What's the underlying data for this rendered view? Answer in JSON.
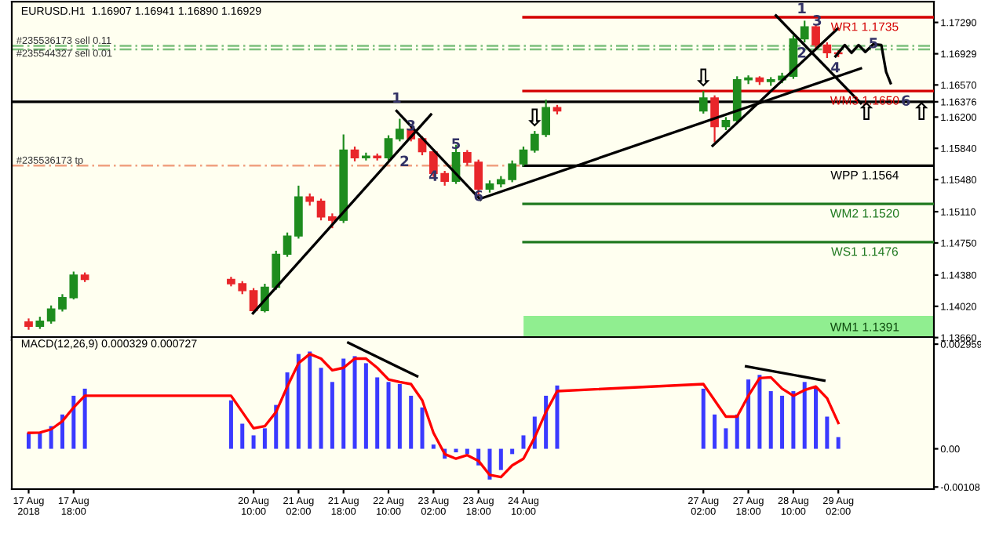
{
  "chart_data": [
    {
      "type": "candlestick",
      "title": "EURUSD.H1  1.16907 1.16941 1.16890 1.16929",
      "x": [
        "2018-08-17T02:00",
        "2018-08-17T06:00",
        "2018-08-17T10:00",
        "2018-08-17T14:00",
        "2018-08-17T18:00",
        "2018-08-17T22:00",
        "2018-08-20T02:00",
        "2018-08-20T06:00",
        "2018-08-20T10:00",
        "2018-08-20T14:00",
        "2018-08-20T18:00",
        "2018-08-20T22:00",
        "2018-08-21T02:00",
        "2018-08-21T06:00",
        "2018-08-21T10:00",
        "2018-08-21T14:00",
        "2018-08-21T18:00",
        "2018-08-21T22:00",
        "2018-08-22T02:00",
        "2018-08-22T06:00",
        "2018-08-22T10:00",
        "2018-08-22T14:00",
        "2018-08-22T18:00",
        "2018-08-22T22:00",
        "2018-08-23T02:00",
        "2018-08-23T06:00",
        "2018-08-23T10:00",
        "2018-08-23T14:00",
        "2018-08-23T18:00",
        "2018-08-23T22:00",
        "2018-08-24T02:00",
        "2018-08-24T06:00",
        "2018-08-24T10:00",
        "2018-08-24T14:00",
        "2018-08-24T18:00",
        "2018-08-24T22:00",
        "2018-08-27T02:00",
        "2018-08-27T06:00",
        "2018-08-27T10:00",
        "2018-08-27T14:00",
        "2018-08-27T18:00",
        "2018-08-27T22:00",
        "2018-08-28T02:00",
        "2018-08-28T06:00",
        "2018-08-28T10:00",
        "2018-08-28T14:00",
        "2018-08-28T18:00",
        "2018-08-28T22:00",
        "2018-08-29T02:00"
      ],
      "ohlc": [
        [
          1.1384,
          1.1388,
          1.1375,
          1.1379
        ],
        [
          1.1379,
          1.139,
          1.1376,
          1.1385
        ],
        [
          1.1385,
          1.1403,
          1.1382,
          1.1399
        ],
        [
          1.1399,
          1.1416,
          1.1396,
          1.1412
        ],
        [
          1.1412,
          1.1442,
          1.141,
          1.1438
        ],
        [
          1.1438,
          1.1441,
          1.143,
          1.1433
        ],
        [
          1.1433,
          1.1436,
          1.1425,
          1.1428
        ],
        [
          1.1428,
          1.1431,
          1.1416,
          1.142
        ],
        [
          1.142,
          1.1423,
          1.1394,
          1.1397
        ],
        [
          1.1397,
          1.1428,
          1.1395,
          1.1424
        ],
        [
          1.1424,
          1.1466,
          1.1421,
          1.1462
        ],
        [
          1.1462,
          1.1487,
          1.1459,
          1.1483
        ],
        [
          1.1483,
          1.1541,
          1.148,
          1.1528
        ],
        [
          1.1528,
          1.1532,
          1.1518,
          1.1523
        ],
        [
          1.1523,
          1.1526,
          1.1501,
          1.1505
        ],
        [
          1.1505,
          1.1509,
          1.1492,
          1.1501
        ],
        [
          1.1501,
          1.16,
          1.1498,
          1.1582
        ],
        [
          1.1582,
          1.1586,
          1.1569,
          1.1573
        ],
        [
          1.1573,
          1.1579,
          1.157,
          1.1575
        ],
        [
          1.1575,
          1.1578,
          1.157,
          1.1573
        ],
        [
          1.1573,
          1.1599,
          1.157,
          1.1595
        ],
        [
          1.1595,
          1.1618,
          1.1592,
          1.1606
        ],
        [
          1.1606,
          1.1609,
          1.1592,
          1.1595
        ],
        [
          1.1595,
          1.1598,
          1.1576,
          1.158
        ],
        [
          1.158,
          1.1583,
          1.1551,
          1.1555
        ],
        [
          1.1555,
          1.1558,
          1.1541,
          1.1546
        ],
        [
          1.1546,
          1.1588,
          1.1543,
          1.1579
        ],
        [
          1.1579,
          1.1582,
          1.1564,
          1.1568
        ],
        [
          1.1568,
          1.1571,
          1.1528,
          1.1537
        ],
        [
          1.1537,
          1.1547,
          1.1533,
          1.1543
        ],
        [
          1.1543,
          1.1552,
          1.1539,
          1.1548
        ],
        [
          1.1548,
          1.157,
          1.1545,
          1.1566
        ],
        [
          1.1566,
          1.1586,
          1.1563,
          1.1582
        ],
        [
          1.1582,
          1.1604,
          1.1579,
          1.16
        ],
        [
          1.16,
          1.164,
          1.1597,
          1.1631
        ],
        [
          1.1631,
          1.1634,
          1.1623,
          1.1627
        ],
        [
          1.1627,
          1.165,
          1.1624,
          1.1642
        ],
        [
          1.1642,
          1.1645,
          1.1591,
          1.1609
        ],
        [
          1.1609,
          1.162,
          1.1605,
          1.1616
        ],
        [
          1.1616,
          1.1667,
          1.1613,
          1.1663
        ],
        [
          1.1663,
          1.1668,
          1.1658,
          1.1665
        ],
        [
          1.1665,
          1.1667,
          1.1657,
          1.1661
        ],
        [
          1.1661,
          1.1666,
          1.1656,
          1.1663
        ],
        [
          1.1663,
          1.1671,
          1.1659,
          1.1667
        ],
        [
          1.1667,
          1.1714,
          1.1664,
          1.171
        ],
        [
          1.171,
          1.1731,
          1.1706,
          1.1724
        ],
        [
          1.1724,
          1.1727,
          1.1699,
          1.1703
        ],
        [
          1.1703,
          1.1706,
          1.1688,
          1.1694
        ],
        [
          1.1694,
          1.1697,
          1.1689,
          1.1693
        ]
      ],
      "colors": [
        "#e8262a",
        "#1e8c1e",
        "#1e8c1e",
        "#1e8c1e",
        "#1e8c1e",
        "#e8262a",
        "#e8262a",
        "#e8262a",
        "#e8262a",
        "#1e8c1e",
        "#1e8c1e",
        "#1e8c1e",
        "#1e8c1e",
        "#e8262a",
        "#e8262a",
        "#e8262a",
        "#1e8c1e",
        "#e8262a",
        "#1e8c1e",
        "#e8262a",
        "#1e8c1e",
        "#1e8c1e",
        "#e8262a",
        "#e8262a",
        "#e8262a",
        "#e8262a",
        "#1e8c1e",
        "#e8262a",
        "#e8262a",
        "#1e8c1e",
        "#1e8c1e",
        "#1e8c1e",
        "#1e8c1e",
        "#1e8c1e",
        "#1e8c1e",
        "#e8262a",
        "#1e8c1e",
        "#e8262a",
        "#1e8c1e",
        "#1e8c1e",
        "#1e8c1e",
        "#e8262a",
        "#1e8c1e",
        "#1e8c1e",
        "#1e8c1e",
        "#1e8c1e",
        "#e8262a",
        "#e8262a",
        "#e8262a"
      ],
      "series": [
        {
          "type": "line",
          "color": "#000000",
          "x": [
            "2018-08-20T09:48",
            "2018-08-23T01:06"
          ],
          "values": [
            1.1394,
            1.1623
          ]
        },
        {
          "type": "line",
          "color": "#000000",
          "x": [
            "2018-08-22T12:54",
            "2018-08-23T18:42"
          ],
          "values": [
            1.1627,
            1.1525
          ]
        },
        {
          "type": "line",
          "color": "#000000",
          "x": [
            "2018-08-23T18:42",
            "2018-08-29T10:00"
          ],
          "values": [
            1.1526,
            1.1676
          ]
        },
        {
          "type": "line",
          "color": "#000000",
          "x": [
            "2018-08-27T05:18",
            "2018-08-29T01:48"
          ],
          "values": [
            1.1587,
            1.1722
          ]
        },
        {
          "type": "line",
          "color": "#000000",
          "x": [
            "2018-08-28T03:48",
            "2018-08-29T10:00"
          ],
          "values": [
            1.1737,
            1.1636
          ]
        },
        {
          "type": "line",
          "color": "#000000",
          "x": [
            "2018-08-29T01:00",
            "2018-08-29T04:18",
            "2018-08-29T06:42",
            "2018-08-29T09:12",
            "2018-08-29T11:36",
            "2018-08-29T14:30",
            "2018-08-29T17:18",
            "2018-08-29T19:00",
            "2018-08-29T20:36"
          ],
          "values": [
            1.169,
            1.1703,
            1.1694,
            1.1703,
            1.1695,
            1.1704,
            1.1703,
            1.1672,
            1.1659
          ]
        }
      ],
      "xlim": [
        "2018-08-16T20:00",
        "2018-08-30T12:00"
      ],
      "ylim": [
        1.1363,
        1.1753
      ],
      "yticks": [
        {
          "value": 1.1729,
          "label": "1.17290"
        },
        {
          "value": 1.16929,
          "label": "1.16929"
        },
        {
          "value": 1.1657,
          "label": "1.16570"
        },
        {
          "value": 1.16376,
          "label": "1.16376"
        },
        {
          "value": 1.162,
          "label": "1.16200"
        },
        {
          "value": 1.1584,
          "label": "1.15840"
        },
        {
          "value": 1.1548,
          "label": "1.15480"
        },
        {
          "value": 1.1511,
          "label": "1.15110"
        },
        {
          "value": 1.1475,
          "label": "1.14750"
        },
        {
          "value": 1.1438,
          "label": "1.14380"
        },
        {
          "value": 1.1402,
          "label": "1.14020"
        },
        {
          "value": 1.1366,
          "label": "1.13660"
        }
      ],
      "tick_labels": "y",
      "ref_lines": [
        {
          "axis": "y",
          "value": 1.1735,
          "label": "WR1 1.1735",
          "color": "#d40000"
        },
        {
          "axis": "y",
          "value": 1.165,
          "label": "WM3 1.1650",
          "color": "#d40000"
        },
        {
          "axis": "y",
          "value": 1.1564,
          "label": "WPP 1.1564",
          "color": "#000000"
        },
        {
          "axis": "y",
          "value": 1.152,
          "label": "WM2 1.1520",
          "color": "#207a20"
        },
        {
          "axis": "y",
          "value": 1.1476,
          "label": "WS1 1.1476",
          "color": "#207a20"
        },
        {
          "axis": "y",
          "value": 1.16376,
          "color": "#000000"
        },
        {
          "axis": "y",
          "value": 1.1702,
          "label": "#235536173 sell 0.11",
          "color": "#7cc07c",
          "line_style": "dashed"
        },
        {
          "axis": "y",
          "value": 1.1698,
          "label": "#235544327 sell 0.01",
          "color": "#7cc07c",
          "line_style": "dashed"
        },
        {
          "axis": "y",
          "value": 1.1564,
          "label": "#235536173 tp",
          "color": "#f0a080",
          "line_style": "dashed"
        }
      ],
      "bands": [
        {
          "axis": "y",
          "from": 1.1363,
          "to": 1.1391,
          "label": "WM1 1.1391",
          "color": "#90ee90"
        }
      ],
      "annotations": [
        {
          "text": "1",
          "x": "2018-08-22T12:54",
          "y": 1.1641
        },
        {
          "text": "2",
          "x": "2018-08-22T15:42",
          "y": 1.1568
        },
        {
          "text": "3",
          "x": "2018-08-22T18:00",
          "y": 1.1609
        },
        {
          "text": "4",
          "x": "2018-08-23T02:00",
          "y": 1.1551
        },
        {
          "text": "5",
          "x": "2018-08-23T10:00",
          "y": 1.1588
        },
        {
          "text": "6",
          "x": "2018-08-23T18:00",
          "y": 1.1528
        },
        {
          "text": "1",
          "x": "2018-08-28T13:00",
          "y": 1.1744
        },
        {
          "text": "2",
          "x": "2018-08-28T13:00",
          "y": 1.1693
        },
        {
          "text": "3",
          "x": "2018-08-28T18:30",
          "y": 1.173
        },
        {
          "text": "4",
          "x": "2018-08-29T01:00",
          "y": 1.1676
        },
        {
          "text": "5",
          "x": "2018-08-29T14:30",
          "y": 1.1704
        },
        {
          "text": "6",
          "x": "2018-08-30T02:00",
          "y": 1.16376
        },
        {
          "text": "⇩",
          "x": "2018-08-24T14:00",
          "y": 1.1604
        },
        {
          "text": "⇩",
          "x": "2018-08-27T02:00",
          "y": 1.165
        },
        {
          "text": "⇧",
          "x": "2018-08-29T12:00",
          "y": 1.16376
        },
        {
          "text": "⇧",
          "x": "2018-08-30T07:36",
          "y": 1.16376
        }
      ]
    },
    {
      "type": "bar",
      "title": "MACD(12,26,9) 0.000329 0.000727",
      "x": [
        "2018-08-17T02:00",
        "2018-08-17T06:00",
        "2018-08-17T10:00",
        "2018-08-17T14:00",
        "2018-08-17T18:00",
        "2018-08-17T22:00",
        "2018-08-20T02:00",
        "2018-08-20T06:00",
        "2018-08-20T10:00",
        "2018-08-20T14:00",
        "2018-08-20T18:00",
        "2018-08-20T22:00",
        "2018-08-21T02:00",
        "2018-08-21T06:00",
        "2018-08-21T10:00",
        "2018-08-21T14:00",
        "2018-08-21T18:00",
        "2018-08-21T22:00",
        "2018-08-22T02:00",
        "2018-08-22T06:00",
        "2018-08-22T10:00",
        "2018-08-22T14:00",
        "2018-08-22T18:00",
        "2018-08-22T22:00",
        "2018-08-23T02:00",
        "2018-08-23T06:00",
        "2018-08-23T10:00",
        "2018-08-23T14:00",
        "2018-08-23T18:00",
        "2018-08-23T22:00",
        "2018-08-24T02:00",
        "2018-08-24T06:00",
        "2018-08-24T10:00",
        "2018-08-24T14:00",
        "2018-08-24T18:00",
        "2018-08-24T22:00",
        "2018-08-27T02:00",
        "2018-08-27T06:00",
        "2018-08-27T10:00",
        "2018-08-27T14:00",
        "2018-08-27T18:00",
        "2018-08-27T22:00",
        "2018-08-28T02:00",
        "2018-08-28T06:00",
        "2018-08-28T10:00",
        "2018-08-28T14:00",
        "2018-08-28T18:00",
        "2018-08-28T22:00",
        "2018-08-29T02:00"
      ],
      "series": [
        {
          "type": "bar",
          "color": "#3a3aff",
          "values": [
            0.00045,
            0.00045,
            0.00064,
            0.00097,
            0.0015,
            0.0017,
            0.00137,
            0.00071,
            0.00038,
            0.00058,
            0.00124,
            0.00216,
            0.00268,
            0.00275,
            0.00229,
            0.00189,
            0.00255,
            0.00262,
            0.00242,
            0.00202,
            0.00189,
            0.00183,
            0.0015,
            0.00117,
            0.00012,
            -0.00028,
            -0.0001,
            -0.00015,
            -0.00047,
            -0.00087,
            -0.0006,
            -0.00015,
            0.00038,
            0.00091,
            0.0015,
            0.00179,
            0.0017,
            0.00097,
            0.00058,
            0.00097,
            0.00196,
            0.00209,
            0.00163,
            0.0015,
            0.00163,
            0.00189,
            0.0017,
            0.00091,
            0.00033
          ]
        },
        {
          "type": "line",
          "color": "#ff0000",
          "values": [
            0.00045,
            0.00046,
            0.00055,
            0.00078,
            0.00117,
            0.0015,
            0.0015,
            0.00104,
            0.00058,
            0.00064,
            0.00104,
            0.00176,
            0.00242,
            0.00268,
            0.00255,
            0.00222,
            0.00229,
            0.00255,
            0.00255,
            0.00229,
            0.00196,
            0.00189,
            0.00183,
            0.00137,
            0.00045,
            -0.00015,
            -0.00028,
            -0.00018,
            -0.00034,
            -0.00074,
            -0.0008,
            -0.00047,
            -0.00028,
            0.00032,
            0.00104,
            0.00163,
            0.00183,
            0.00137,
            0.00091,
            0.00091,
            0.0015,
            0.002,
            0.00202,
            0.0017,
            0.0015,
            0.00166,
            0.00176,
            0.00143,
            0.00073
          ]
        },
        {
          "type": "line",
          "color": "#000000",
          "x": [
            "2018-08-21T19:42",
            "2018-08-22T20:12"
          ],
          "values": [
            0.003,
            0.00205
          ]
        },
        {
          "type": "line",
          "color": "#000000",
          "x": [
            "2018-08-27T17:12",
            "2018-08-28T21:00"
          ],
          "values": [
            0.00233,
            0.00193
          ]
        }
      ],
      "xlim": [
        "2018-08-16T20:00",
        "2018-08-30T12:00"
      ],
      "ylim": [
        -0.00114,
        0.00316
      ],
      "xticks": [
        {
          "value": "2018-08-17T02:00",
          "label": "17 Aug 2018"
        },
        {
          "value": "2018-08-17T18:00",
          "label": "17 Aug 18:00"
        },
        {
          "value": "2018-08-20T10:00",
          "label": "20 Aug 10:00"
        },
        {
          "value": "2018-08-21T02:00",
          "label": "21 Aug 02:00"
        },
        {
          "value": "2018-08-21T18:00",
          "label": "21 Aug 18:00"
        },
        {
          "value": "2018-08-22T10:00",
          "label": "22 Aug 10:00"
        },
        {
          "value": "2018-08-23T02:00",
          "label": "23 Aug 02:00"
        },
        {
          "value": "2018-08-23T18:00",
          "label": "23 Aug 18:00"
        },
        {
          "value": "2018-08-24T10:00",
          "label": "24 Aug 10:00"
        },
        {
          "value": "2018-08-27T02:00",
          "label": "27 Aug 02:00"
        },
        {
          "value": "2018-08-27T18:00",
          "label": "27 Aug 18:00"
        },
        {
          "value": "2018-08-28T10:00",
          "label": "28 Aug 10:00"
        },
        {
          "value": "2018-08-29T02:00",
          "label": "29 Aug 02:00"
        }
      ],
      "yticks": [
        {
          "value": 0.002959,
          "label": "0.002959"
        },
        {
          "value": 0,
          "label": "0.00"
        },
        {
          "value": -0.00108,
          "label": "-0.00108"
        }
      ]
    }
  ]
}
